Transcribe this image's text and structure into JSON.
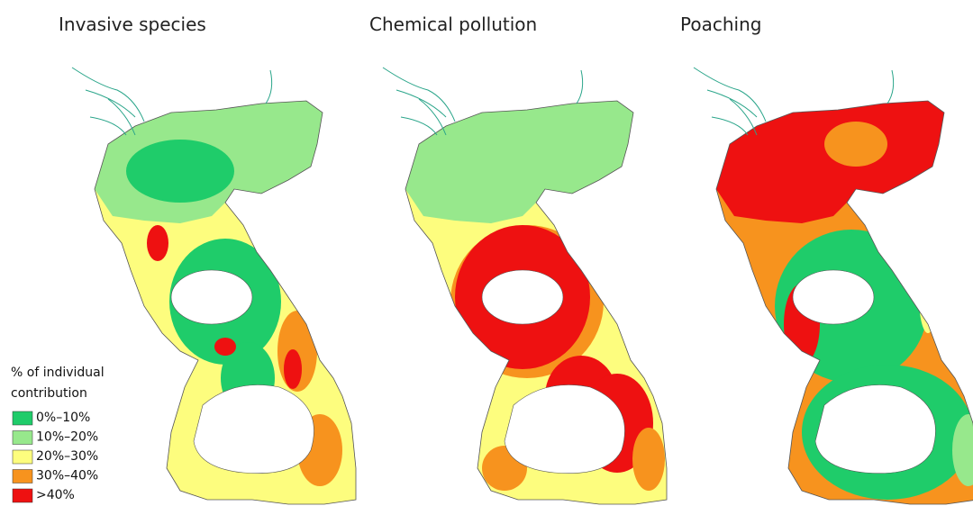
{
  "panels": [
    {
      "title": "Invasive species"
    },
    {
      "title": "Chemical pollution"
    },
    {
      "title": "Poaching"
    }
  ],
  "legend": {
    "title_lines": [
      "% of individual",
      "contribution"
    ],
    "items": [
      {
        "label": "0%–10%",
        "color": "#1fcc6a"
      },
      {
        "label": "10%–20%",
        "color": "#97e88c"
      },
      {
        "label": "20%–30%",
        "color": "#fdfd7e"
      },
      {
        "label": "30%–40%",
        "color": "#f7931e"
      },
      {
        "label": ">40%",
        "color": "#ee1111"
      }
    ]
  }
}
